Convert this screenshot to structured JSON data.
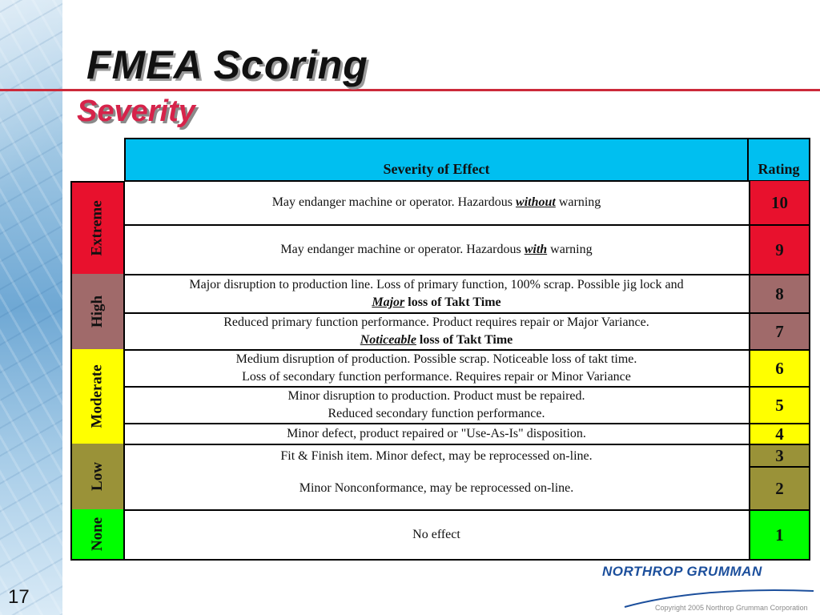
{
  "slide": {
    "title": "FMEA Scoring",
    "subtitle": "Severity",
    "number": "17",
    "logo_text": "NORTHROP GRUMMAN",
    "copyright": "Copyright 2005 Northrop Grumman Corporation"
  },
  "table": {
    "header_effect": "Severity of Effect",
    "header_rating": "Rating",
    "categories": [
      {
        "label": "Extreme",
        "color": "#e8112d"
      },
      {
        "label": "High",
        "color": "#a06a6a"
      },
      {
        "label": "Moderate",
        "color": "#ffff00"
      },
      {
        "label": "Low",
        "color": "#9a9238"
      },
      {
        "label": "None",
        "color": "#00ff00"
      }
    ],
    "rows": [
      {
        "pre": "May endanger machine or operator.  Hazardous ",
        "em": "without",
        "post": " warning",
        "rating": "10"
      },
      {
        "pre": "May endanger machine or operator.  Hazardous ",
        "em": "with",
        "post": " warning",
        "rating": "9"
      },
      {
        "line1": "Major disruption to production line. Loss of primary function, 100% scrap. Possible jig lock and",
        "em": "Major",
        "post": " loss of Takt Time",
        "rating": "8"
      },
      {
        "line1": "Reduced primary function performance.  Product requires  repair or Major Variance.",
        "em": "Noticeable",
        "post": " loss of Takt Time",
        "rating": "7"
      },
      {
        "line1": "Medium disruption of production.  Possible scrap. Noticeable loss of takt time.",
        "line2": "Loss of secondary function performance. Requires repair or Minor Variance",
        "rating": "6"
      },
      {
        "line1": "Minor disruption to production. Product must be repaired.",
        "line2": "Reduced secondary function performance.",
        "rating": "5"
      },
      {
        "line1": "Minor defect, product repaired or \"Use-As-Is\" disposition.",
        "rating": "4"
      },
      {
        "line1": "Fit & Finish item.  Minor defect, may be reprocessed on-line.",
        "rating": "3"
      },
      {
        "line1": "Minor Nonconformance, may be reprocessed on-line.",
        "rating": "2"
      },
      {
        "line1": "No effect",
        "rating": "1"
      }
    ]
  }
}
